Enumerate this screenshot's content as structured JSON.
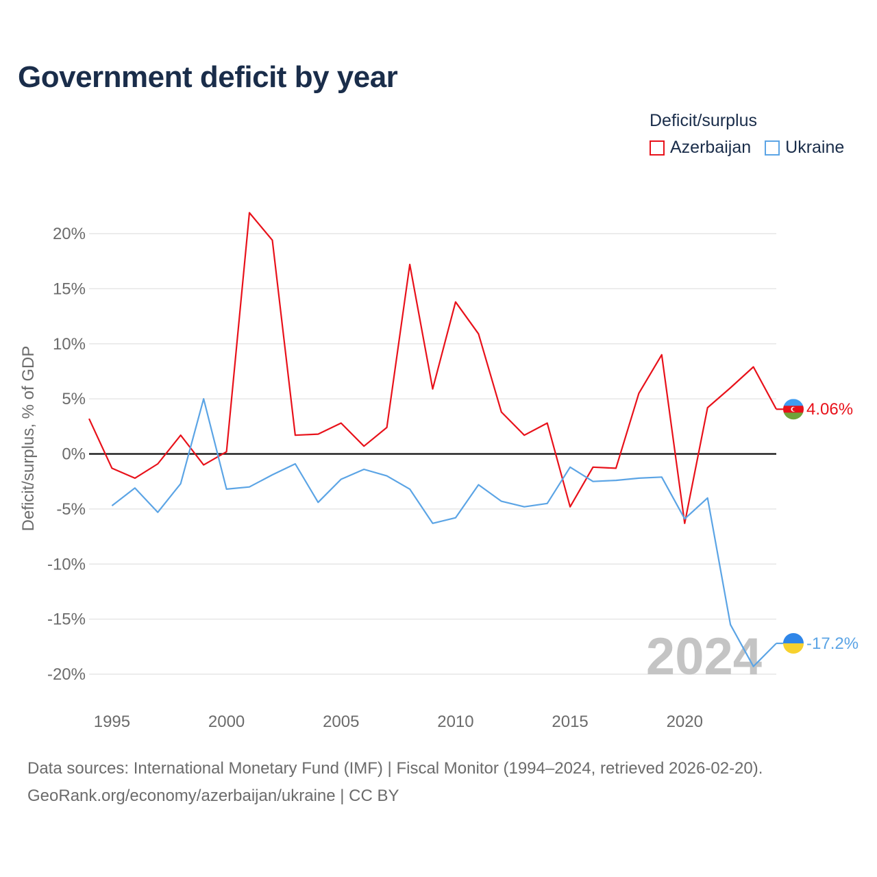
{
  "chart_data": {
    "type": "line",
    "title": "Government deficit by year",
    "ylabel": "Deficit/surplus, % of GDP",
    "xlabel": "",
    "year_label": "2024",
    "legend": {
      "title": "Deficit/surplus",
      "placement": "top-right"
    },
    "xlim": [
      1994,
      2024
    ],
    "ylim": [
      -22,
      22
    ],
    "x_ticks": [
      1995,
      2000,
      2005,
      2010,
      2015,
      2020
    ],
    "y_ticks": [
      {
        "value": 20,
        "label": "20%"
      },
      {
        "value": 15,
        "label": "15%"
      },
      {
        "value": 10,
        "label": "10%"
      },
      {
        "value": 5,
        "label": "5%"
      },
      {
        "value": 0,
        "label": "0%"
      },
      {
        "value": -5,
        "label": "-5%"
      },
      {
        "value": -10,
        "label": "-10%"
      },
      {
        "value": -15,
        "label": "-15%"
      },
      {
        "value": -20,
        "label": "-20%"
      }
    ],
    "grid": true,
    "series": [
      {
        "name": "Azerbaijan",
        "color": "#e8111a",
        "end_label": "4.06%",
        "end_value": 4.06,
        "flag": "azerbaijan-flag",
        "x": [
          1994,
          1995,
          1996,
          1997,
          1998,
          1999,
          2000,
          2001,
          2002,
          2003,
          2004,
          2005,
          2006,
          2007,
          2008,
          2009,
          2010,
          2011,
          2012,
          2013,
          2014,
          2015,
          2016,
          2017,
          2018,
          2019,
          2020,
          2021,
          2022,
          2023,
          2024
        ],
        "values": [
          3.2,
          -1.3,
          -2.2,
          -0.9,
          1.7,
          -1.0,
          0.2,
          21.9,
          19.4,
          1.7,
          1.8,
          2.8,
          0.7,
          2.4,
          17.2,
          5.9,
          13.8,
          10.9,
          3.8,
          1.7,
          2.8,
          -4.8,
          -1.2,
          -1.3,
          5.5,
          9.0,
          -6.3,
          4.2,
          6.0,
          7.9,
          4.06
        ]
      },
      {
        "name": "Ukraine",
        "color": "#5ba4e5",
        "end_label": "-17.2%",
        "end_value": -17.2,
        "flag": "ukraine-flag",
        "x": [
          1995,
          1996,
          1997,
          1998,
          1999,
          2000,
          2001,
          2002,
          2003,
          2004,
          2005,
          2006,
          2007,
          2008,
          2009,
          2010,
          2011,
          2012,
          2013,
          2014,
          2015,
          2016,
          2017,
          2018,
          2019,
          2020,
          2021,
          2022,
          2023,
          2024
        ],
        "values": [
          -4.7,
          -3.1,
          -5.3,
          -2.7,
          5.0,
          -3.2,
          -3.0,
          -1.9,
          -0.9,
          -4.4,
          -2.3,
          -1.4,
          -2.0,
          -3.2,
          -6.3,
          -5.8,
          -2.8,
          -4.3,
          -4.8,
          -4.5,
          -1.2,
          -2.5,
          -2.4,
          -2.2,
          -2.1,
          -5.9,
          -4.0,
          -15.5,
          -19.3,
          -17.2
        ]
      }
    ]
  },
  "sources": {
    "line1": "Data sources: International Monetary Fund (IMF) | Fiscal Monitor (1994–2024, retrieved 2026-02-20).",
    "line2": "GeoRank.org/economy/azerbaijan/ukraine | CC BY"
  }
}
